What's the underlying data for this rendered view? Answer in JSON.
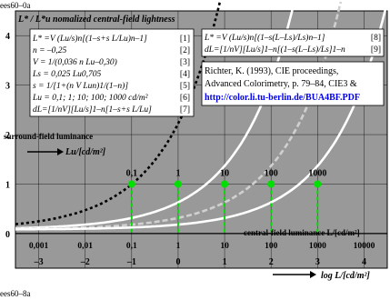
{
  "code_top": "ees60–0a",
  "code_bottom": "ees60–8a",
  "chart_data": {
    "type": "line",
    "title": "L* / L*u  nomalized central-field lightness",
    "xlabel": "log L/[cd/m²]",
    "xlabel_secondary": "central-field luminance L/[cd/m²]",
    "surround_label": "surround-field luminance",
    "surround_unit": "Lu/[cd/m²]",
    "xlim": [
      -3.5,
      4.5
    ],
    "ylim": [
      -0.7,
      4.5
    ],
    "x_ticks": [
      -3,
      -2,
      -1,
      0,
      1,
      2,
      3,
      4
    ],
    "x_tick_labels": [
      "–3",
      "–2",
      "–1",
      "0",
      "1",
      "2",
      "3",
      "4"
    ],
    "y_ticks": [
      0,
      1,
      2,
      3,
      4
    ],
    "y_tick_labels": [
      "0",
      "1",
      "2",
      "3",
      "4"
    ],
    "lin_ticks": [
      -3,
      -2,
      -1,
      0,
      1,
      2,
      3,
      4
    ],
    "lin_tick_labels": [
      "0,001",
      "0,01",
      "0,1",
      "1",
      "10",
      "100",
      "1000",
      "10000"
    ],
    "surround_values": [
      -1,
      0,
      1,
      2,
      3
    ],
    "surround_labels": [
      "0,1",
      "1",
      "10",
      "100",
      "1000"
    ],
    "grid": true,
    "background": "#999999",
    "series": [
      {
        "color": "#000000",
        "dash": "3,3",
        "offset": -1.6
      },
      {
        "color": "#ffffff",
        "dash": "",
        "offset": 0
      },
      {
        "color": "#d0d0d0",
        "dash": "6,3",
        "offset": 1
      },
      {
        "color": "#ffffff",
        "dash": "",
        "offset": 2
      }
    ],
    "marker_color": "#00e000",
    "formula_box_left": {
      "lines": [
        "L* =V (Lu/s)n[(1–s+s L/Lu)n–1]",
        "n = –0,25",
        "V = 1/(0,036 n Lu–0,30)",
        "Ls = 0,025 Lu0,705",
        "s = 1/[1+(n V Lun)1/(1–n)]",
        "Lu = 0,1; 1; 10; 100; 1000 cd/m²",
        "dL=[1/nV][Lu/s]1–n[1–s+s L/Lu]"
      ],
      "nums": [
        "[1]",
        "[2]",
        "[3]",
        "[4]",
        "[5]",
        "[6]",
        "[7]"
      ]
    },
    "formula_box_right": {
      "lines": [
        "L* =V (Lu/s)n[(1–s(L–Ls)/Ls)n–1]",
        "dL=[1/nV][Lu/s]1–n[(1–s(L–Ls)/Ls]1–n"
      ],
      "nums": [
        "[8]",
        "[9]"
      ]
    },
    "reference": {
      "line1": "Richter, K. (1993), CIE proceedings,",
      "line2": "Advanced Colorimetry, p. 79–84, CIE3 &",
      "link": "http://color.li.tu-berlin.de/BUA4BF.PDF"
    }
  }
}
